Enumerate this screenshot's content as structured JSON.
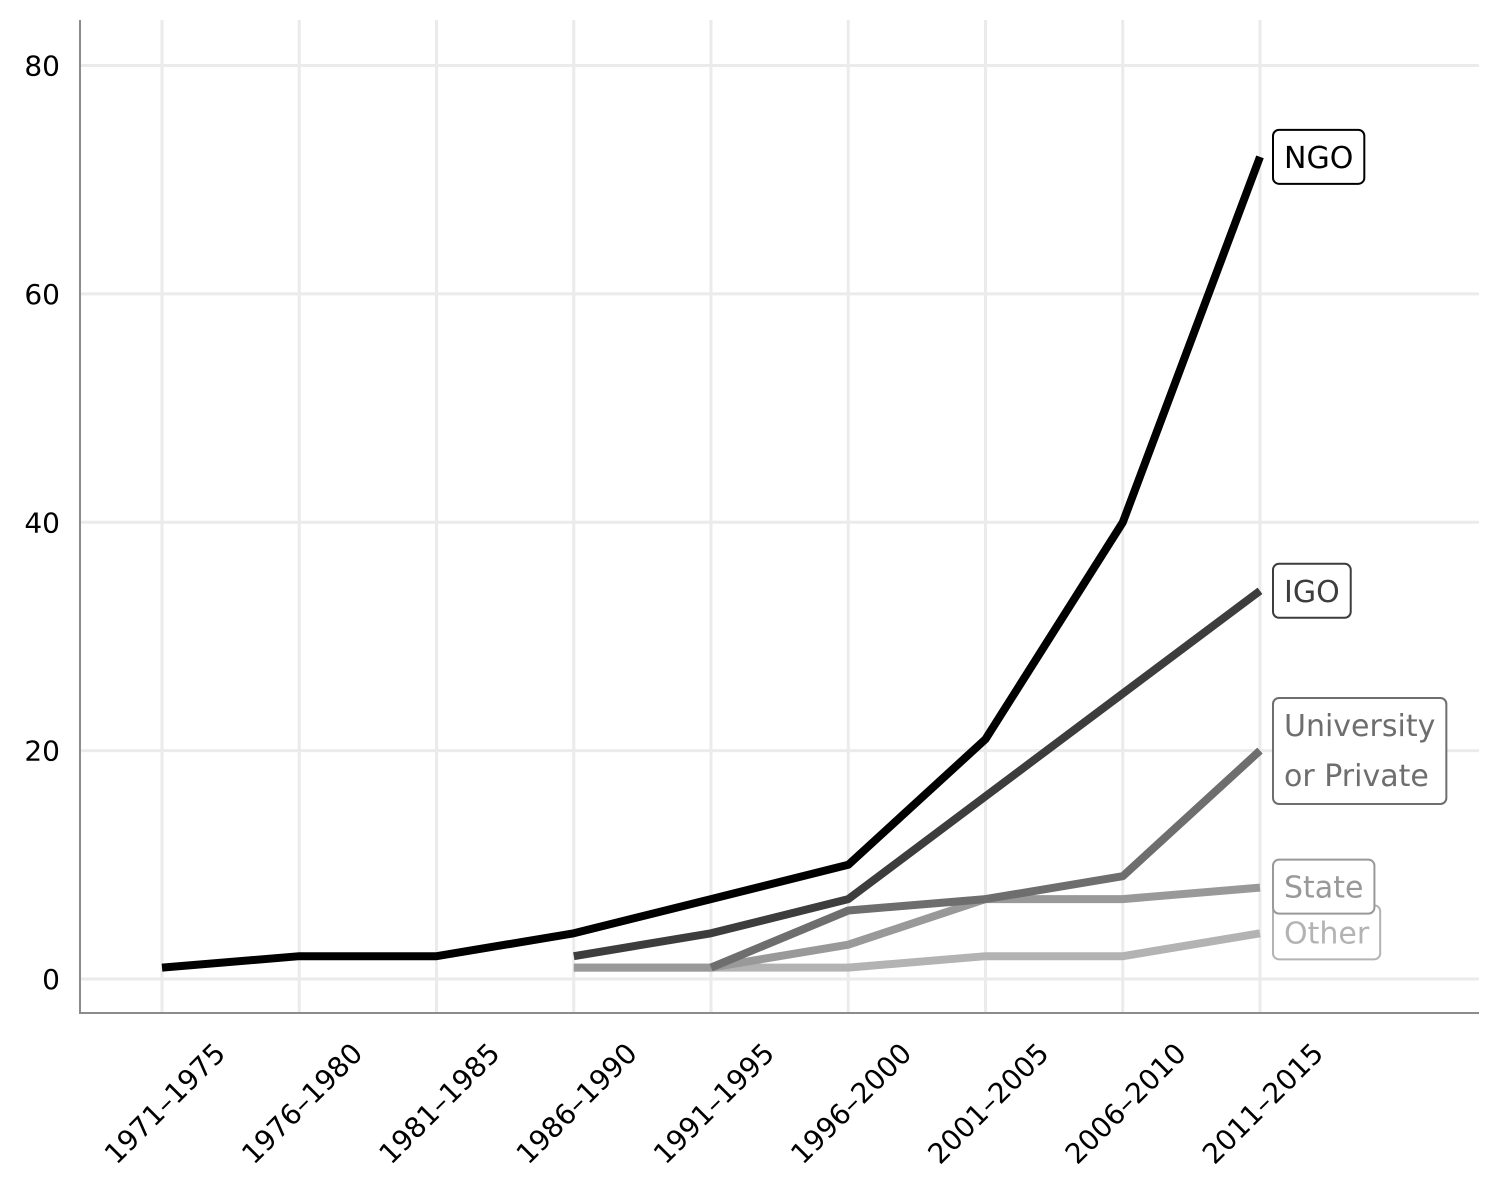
{
  "chart_data": {
    "type": "line",
    "title": "",
    "xlabel": "",
    "ylabel": "",
    "categories": [
      "1971–1975",
      "1976–1980",
      "1981–1985",
      "1986–1990",
      "1991–1995",
      "1996–2000",
      "2001–2005",
      "2006–2010",
      "2011–2015"
    ],
    "ylim": [
      -3,
      84
    ],
    "yticks": [
      0,
      20,
      40,
      60,
      80
    ],
    "grid": true,
    "legend": "direct labels at line ends (right)",
    "series": [
      {
        "name": "Other",
        "label_lines": [
          "Other"
        ],
        "color": "#b3b3b3",
        "values": [
          null,
          null,
          null,
          1,
          1,
          1,
          2,
          2,
          4
        ]
      },
      {
        "name": "State",
        "label_lines": [
          "State"
        ],
        "color": "#999999",
        "values": [
          null,
          null,
          null,
          1,
          1,
          3,
          7,
          7,
          8
        ]
      },
      {
        "name": "University or Private",
        "label_lines": [
          "University",
          "or Private"
        ],
        "color": "#6e6e6e",
        "values": [
          null,
          null,
          null,
          null,
          1,
          6,
          7,
          9,
          20
        ]
      },
      {
        "name": "IGO",
        "label_lines": [
          "IGO"
        ],
        "color": "#3d3d3d",
        "values": [
          null,
          null,
          null,
          2,
          4,
          7,
          16,
          25,
          34
        ]
      },
      {
        "name": "NGO",
        "label_lines": [
          "NGO"
        ],
        "color": "#000000",
        "values": [
          1,
          2,
          2,
          4,
          7,
          10,
          21,
          40,
          72
        ]
      }
    ]
  }
}
